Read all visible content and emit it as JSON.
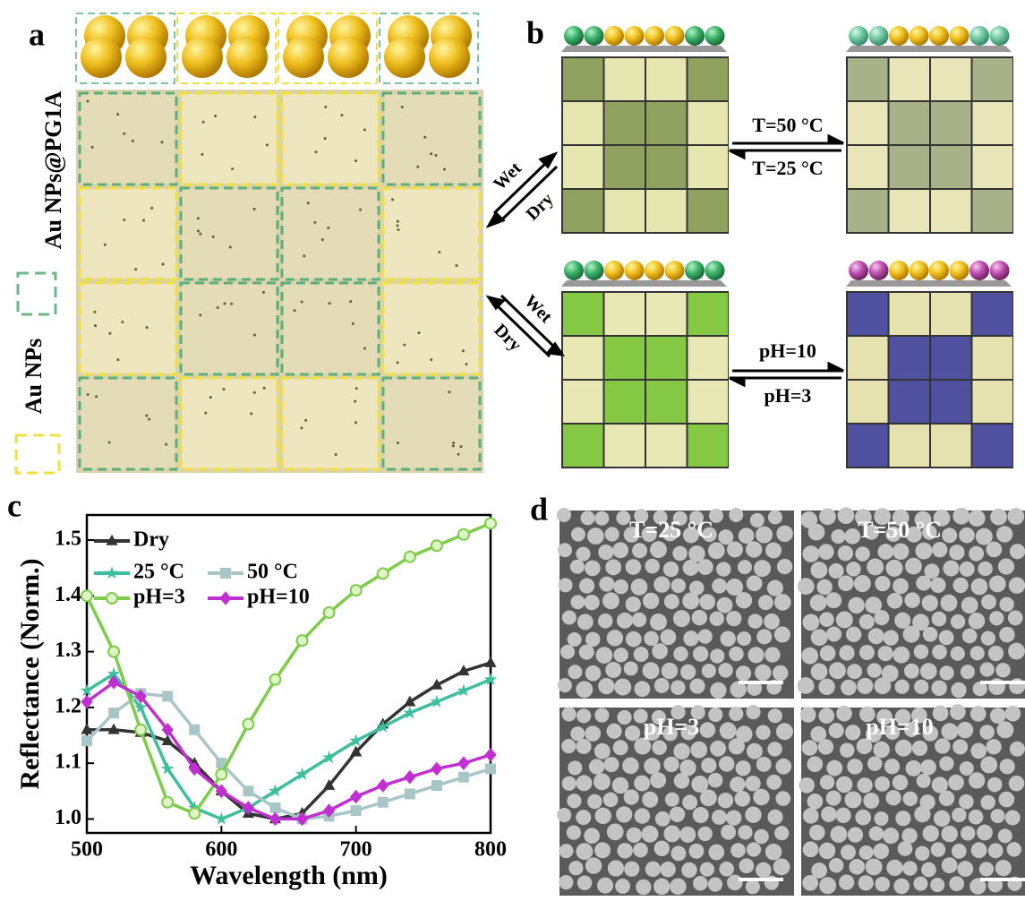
{
  "panel_labels": [
    "a",
    "b",
    "c",
    "d"
  ],
  "panel_a": {
    "labels": [
      "Au NPs@PG1A",
      "Au NPs"
    ]
  },
  "panel_b": {
    "wet_dry_top": [
      "Wet",
      "Dry"
    ],
    "wet_dry_bottom": [
      "Wet",
      "Dry"
    ],
    "temperature": [
      "T=50 °C",
      "T=25 °C"
    ],
    "ph": [
      "pH=10",
      "pH=3"
    ]
  },
  "panel_d": {
    "labels": [
      "T=25 °C",
      "T=50 °C",
      "pH=3",
      "pH=10"
    ]
  },
  "chart_data": {
    "type": "line",
    "x_label": "Wavelength (nm)",
    "y_label": "Reflectance (Norm.)",
    "x": [
      500,
      520,
      540,
      560,
      580,
      600,
      620,
      640,
      660,
      680,
      700,
      720,
      740,
      760,
      780,
      800
    ],
    "xlim": [
      500,
      800
    ],
    "ylim": [
      0.975,
      1.545
    ],
    "xticks": [
      500,
      600,
      700,
      800
    ],
    "yticks": [
      {
        "value": 1,
        "label": "1.0"
      },
      1.1,
      1.2,
      1.3,
      1.4,
      1.5
    ],
    "legend": "upper left",
    "series": [
      {
        "name": "Dry",
        "color": "#333333",
        "marker": "triangle",
        "values": [
          1.16,
          1.16,
          1.155,
          1.14,
          1.1,
          1.05,
          1.01,
          1.0,
          1.01,
          1.06,
          1.12,
          1.17,
          1.21,
          1.24,
          1.265,
          1.28
        ]
      },
      {
        "name": "25 °C",
        "color": "#3dbf9c",
        "marker": "star",
        "values": [
          1.23,
          1.26,
          1.2,
          1.09,
          1.02,
          1.0,
          1.02,
          1.05,
          1.08,
          1.11,
          1.14,
          1.165,
          1.19,
          1.21,
          1.23,
          1.25
        ]
      },
      {
        "name": "50 °C",
        "color": "#a9c6c6",
        "marker": "square",
        "values": [
          1.14,
          1.19,
          1.225,
          1.22,
          1.16,
          1.1,
          1.05,
          1.02,
          1.0,
          1.005,
          1.015,
          1.03,
          1.045,
          1.06,
          1.075,
          1.09
        ]
      },
      {
        "name": "pH=3",
        "color": "#7dcc4a",
        "marker": "circle",
        "values": [
          1.4,
          1.3,
          1.16,
          1.03,
          1.01,
          1.08,
          1.17,
          1.25,
          1.32,
          1.37,
          1.41,
          1.44,
          1.47,
          1.49,
          1.51,
          1.53
        ]
      },
      {
        "name": "pH=10",
        "color": "#c030d0",
        "marker": "diamond",
        "values": [
          1.21,
          1.245,
          1.22,
          1.16,
          1.09,
          1.05,
          1.02,
          1.0,
          1.0,
          1.015,
          1.04,
          1.06,
          1.075,
          1.09,
          1.1,
          1.115
        ]
      }
    ]
  }
}
